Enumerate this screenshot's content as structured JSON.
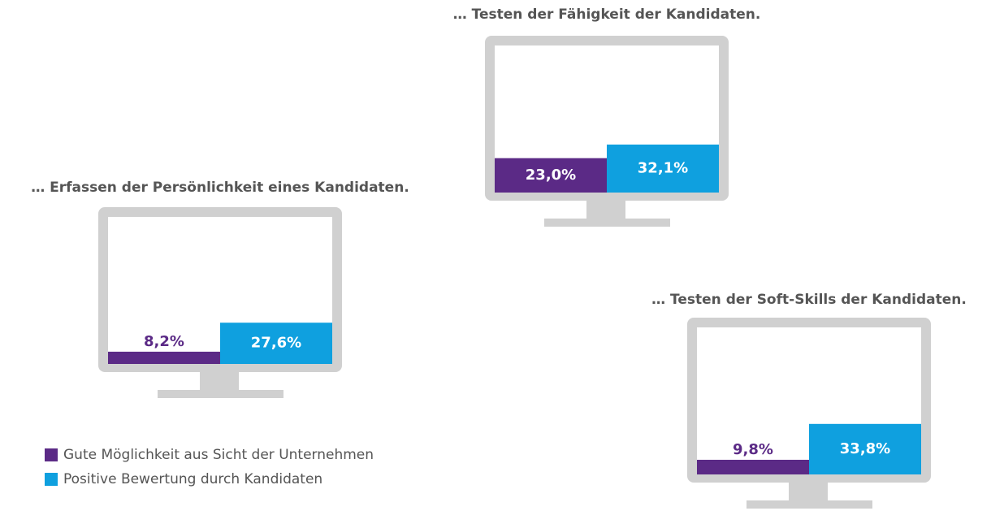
{
  "chart_data": {
    "type": "bar",
    "categories": [
      "… Testen der Fähigkeit der Kandidaten.",
      "… Erfassen der Persönlichkeit eines Kandidaten.",
      "… Testen der Soft-Skills der Kandidaten."
    ],
    "series": [
      {
        "name": "Gute Möglichkeit aus Sicht der Unternehmen",
        "color": "#5b2a86",
        "values": [
          23.0,
          8.2,
          9.8
        ],
        "value_labels": [
          "23,0%",
          "8,2%",
          "9,8%"
        ]
      },
      {
        "name": "Positive Bewertung durch Kandidaten",
        "color": "#0fa0df",
        "values": [
          32.1,
          27.6,
          33.8
        ],
        "value_labels": [
          "32,1%",
          "27,6%",
          "33,8%"
        ]
      }
    ],
    "legend": "bottom-left"
  }
}
